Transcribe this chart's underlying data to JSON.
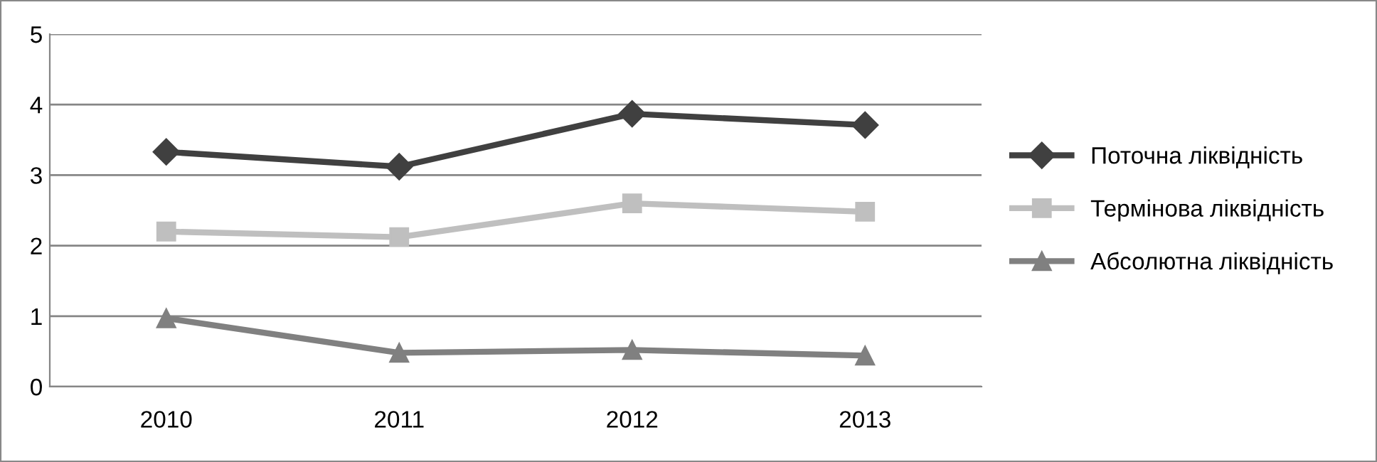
{
  "chart_data": {
    "type": "line",
    "categories": [
      "2010",
      "2011",
      "2012",
      "2013"
    ],
    "series": [
      {
        "name": "Поточна ліквідність",
        "color": "#404040",
        "marker": "diamond",
        "values": [
          3.33,
          3.12,
          3.87,
          3.71
        ]
      },
      {
        "name": "Термінова ліквідність",
        "color": "#bfbfbf",
        "marker": "square",
        "values": [
          2.2,
          2.12,
          2.6,
          2.48
        ]
      },
      {
        "name": "Абсолютна ліквідність",
        "color": "#808080",
        "marker": "triangle",
        "values": [
          0.97,
          0.48,
          0.52,
          0.44
        ]
      }
    ],
    "ylim": [
      0,
      5
    ],
    "yticks": [
      0,
      1,
      2,
      3,
      4,
      5
    ],
    "grid": "y",
    "legend": "right",
    "line_style": "solid"
  }
}
